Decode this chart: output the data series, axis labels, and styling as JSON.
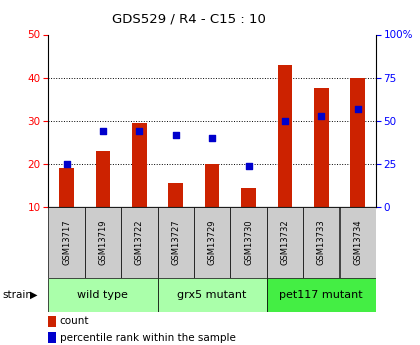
{
  "title": "GDS529 / R4 - C15 : 10",
  "samples": [
    "GSM13717",
    "GSM13719",
    "GSM13722",
    "GSM13727",
    "GSM13729",
    "GSM13730",
    "GSM13732",
    "GSM13733",
    "GSM13734"
  ],
  "count_values": [
    19,
    23,
    29.5,
    15.5,
    20,
    14.5,
    43,
    37.5,
    40
  ],
  "percentile_values": [
    25,
    44,
    44,
    42,
    40,
    24,
    50,
    53,
    57
  ],
  "count_base": 10,
  "ylim_left": [
    10,
    50
  ],
  "ylim_right": [
    0,
    100
  ],
  "yticks_left": [
    10,
    20,
    30,
    40,
    50
  ],
  "yticks_right": [
    0,
    25,
    50,
    75,
    100
  ],
  "yticklabels_right": [
    "0",
    "25",
    "50",
    "75",
    "100%"
  ],
  "groups": [
    {
      "label": "wild type",
      "start": 0,
      "end": 3,
      "color": "#aaffaa"
    },
    {
      "label": "grx5 mutant",
      "start": 3,
      "end": 6,
      "color": "#aaffaa"
    },
    {
      "label": "pet117 mutant",
      "start": 6,
      "end": 9,
      "color": "#44ee44"
    }
  ],
  "bar_color": "#cc2200",
  "dot_color": "#0000cc",
  "bar_width": 0.4,
  "dot_size": 25,
  "sample_bg_color": "#cccccc",
  "strain_label": "strain",
  "legend_count": "count",
  "legend_pct": "percentile rank within the sample",
  "grid_dotted_at": [
    20,
    30,
    40
  ]
}
